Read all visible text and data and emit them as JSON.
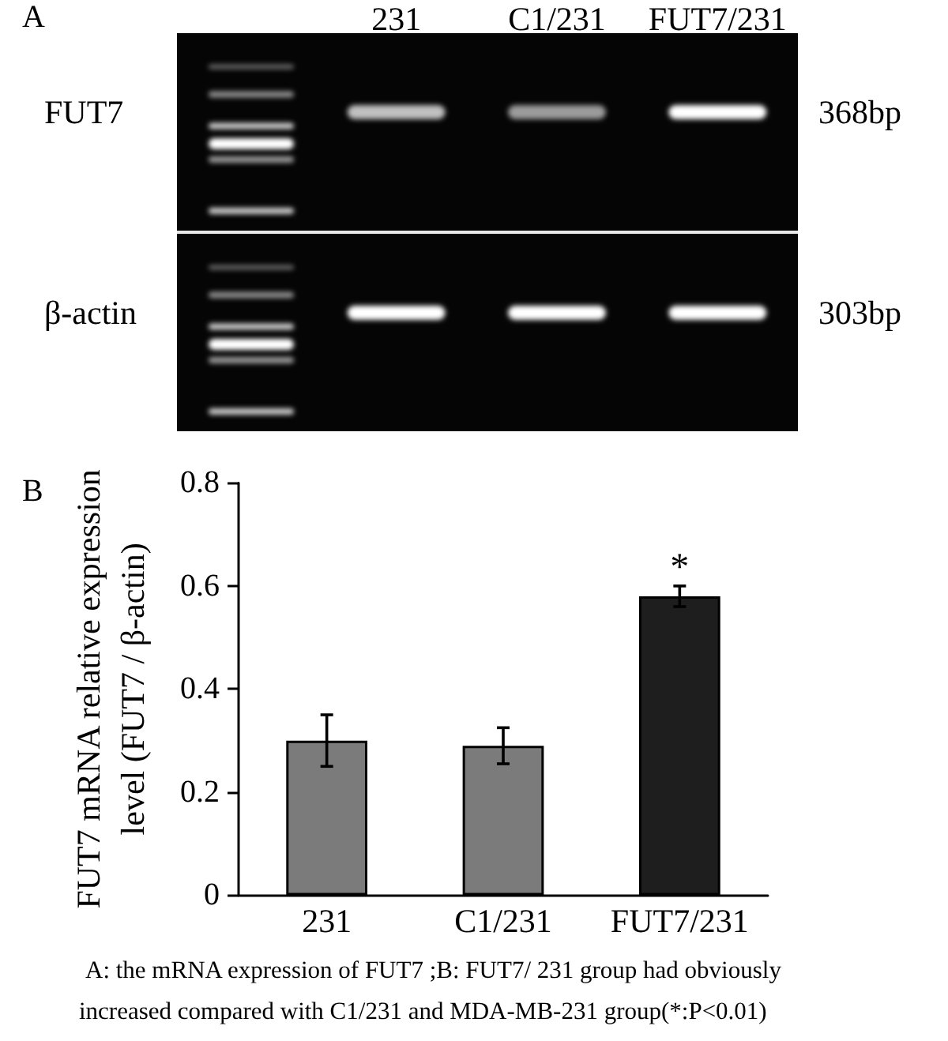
{
  "chart_data": [
    {
      "type": "other",
      "title": "A",
      "categories": [
        "231",
        "C1/231",
        "FUT7/231"
      ],
      "y_categories": [
        "FUT7",
        "β-actin"
      ],
      "y2_categories": [
        "368bp",
        "303bp"
      ]
    },
    {
      "type": "bar",
      "title": "B",
      "ylabel": "FUT7 mRNA relative expression level (FUT7 / β-actin)",
      "categories": [
        "231",
        "C1/231",
        "FUT7/231"
      ],
      "values": [
        0.3,
        0.29,
        0.58
      ],
      "colors": [
        "#7b7b7b",
        "#7b7b7b",
        "#1e1e1e"
      ],
      "errors": [
        0.05,
        0.035,
        0.02
      ],
      "ylim": [
        0,
        0.8
      ],
      "yticks": [
        0,
        0.2,
        0.4,
        0.6,
        0.8
      ],
      "annotations": [
        {
          "text": "*",
          "x": "FUT7/231",
          "y": 0.58
        },
        "A: the mRNA expression of FUT7 ;B: FUT7/ 231 group had obviously increased compared with C1/231 and MDA-MB-231 group(*:P<0.01)"
      ]
    }
  ]
}
